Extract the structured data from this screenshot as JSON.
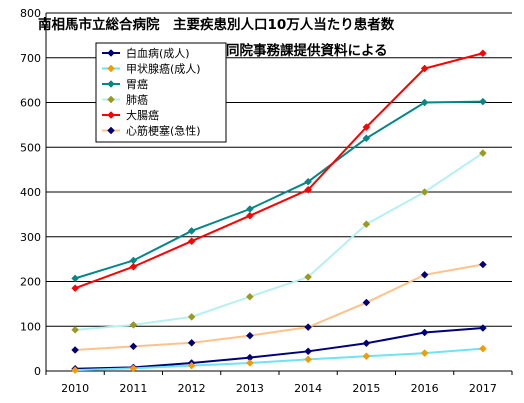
{
  "chart_data": {
    "type": "line",
    "title_lines": [
      "南相馬市立総合病院　主要疾患別人口10万人当たり患者数",
      "同院事務課提供資料による"
    ],
    "xlabel": "",
    "ylabel": "",
    "categories": [
      "2010",
      "2011",
      "2012",
      "2013",
      "2014",
      "2015",
      "2016",
      "2017"
    ],
    "ylim": [
      0,
      800
    ],
    "yticks": [
      0,
      100,
      200,
      300,
      400,
      500,
      600,
      700,
      800
    ],
    "grid": true,
    "legend_position": "top-left",
    "series": [
      {
        "name": "白血病(成人)",
        "color": "#00007a",
        "marker": "diamond",
        "values": [
          5,
          8,
          18,
          30,
          44,
          62,
          86,
          96
        ]
      },
      {
        "name": "甲状腺癌(成人)",
        "color": "#6ee3f2",
        "marker": "diamond",
        "values": [
          2,
          6,
          12,
          18,
          26,
          33,
          40,
          50
        ]
      },
      {
        "name": "胃癌",
        "color": "#058787",
        "marker": "diamond",
        "values": [
          207,
          247,
          313,
          362,
          423,
          520,
          600,
          602
        ]
      },
      {
        "name": "肺癌",
        "color": "#b7f0f0",
        "marker": "diamond",
        "values": [
          92,
          103,
          121,
          166,
          210,
          328,
          400,
          487
        ]
      },
      {
        "name": "大腸癌",
        "color": "#ff0000",
        "marker": "diamond",
        "values": [
          185,
          233,
          290,
          347,
          405,
          545,
          676,
          710
        ]
      },
      {
        "name": "心筋梗塞(急性)",
        "color": "#ffc28a",
        "marker": "diamond",
        "values": [
          47,
          55,
          63,
          79,
          98,
          153,
          215,
          238
        ]
      }
    ],
    "marker_colors": {
      "白血病(成人)": "#00007a",
      "甲状腺癌(成人)": "#f59a00",
      "胃癌": "#058787",
      "肺癌": "#9a9a20",
      "大腸癌": "#ff0000",
      "心筋梗塞(急性)": "#00007a"
    }
  }
}
